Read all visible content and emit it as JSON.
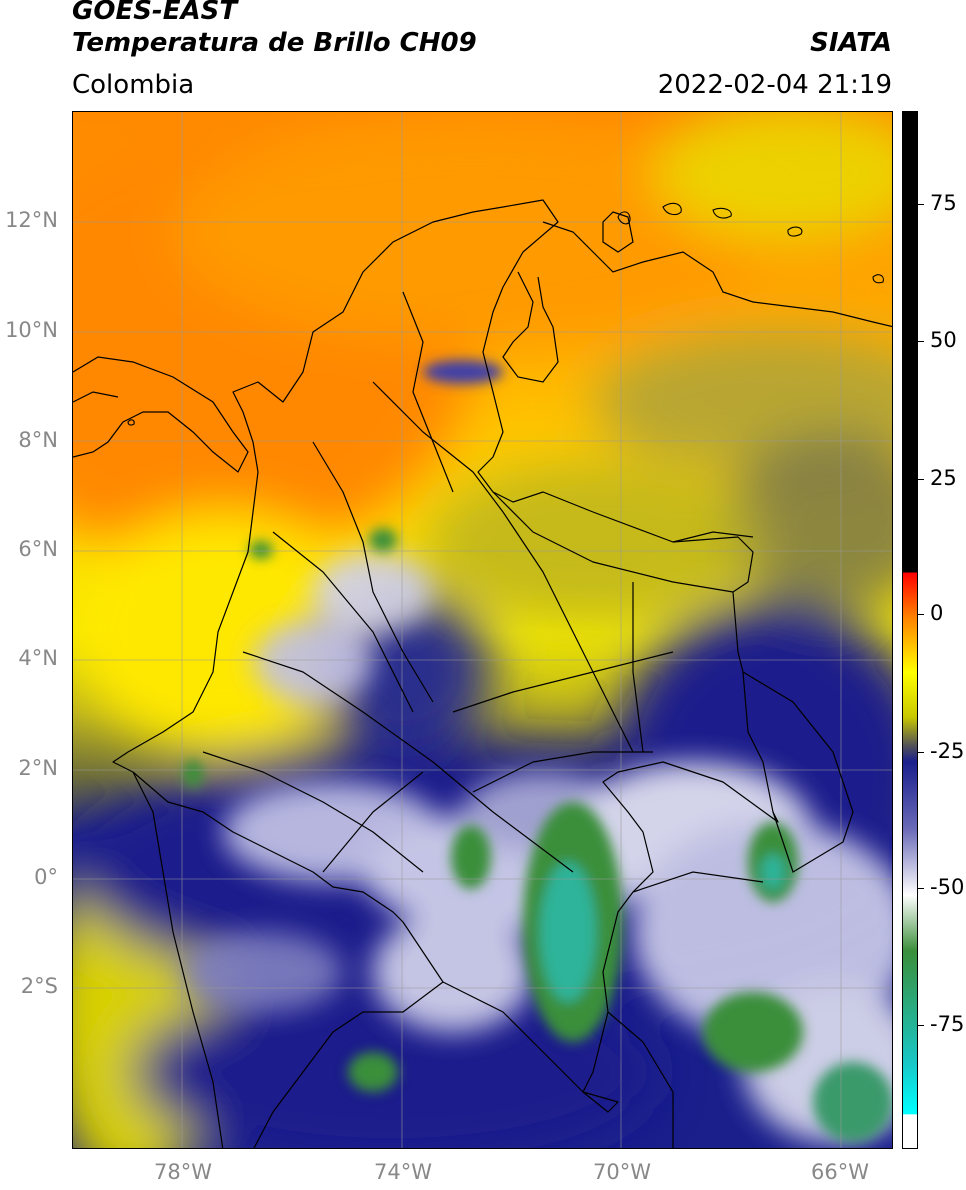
{
  "header": {
    "satellite": "GOES-EAST",
    "product": "Temperatura de Brillo CH09",
    "region": "Colombia",
    "source": "SIATA",
    "timestamp": "2022-02-04 21:19"
  },
  "map": {
    "lat_ticks": [
      "12°N",
      "10°N",
      "8°N",
      "6°N",
      "4°N",
      "2°N",
      "0°",
      "2°S"
    ],
    "lon_ticks": [
      "78°W",
      "74°W",
      "70°W",
      "66°W"
    ],
    "gridlines": true,
    "colors": {
      "orange": "#ff8c00",
      "yellow": "#fff000",
      "olive": "#8a8a30",
      "navy": "#1a1f8c",
      "white_cloud": "#f2f2f8",
      "green_core": "#3a8f3a",
      "cyan": "#18d8c8"
    }
  },
  "colorbar": {
    "ticks": [
      "75",
      "50",
      "25",
      "0",
      "-25",
      "-50",
      "-75"
    ],
    "gradient": [
      {
        "value": 90,
        "color": "#000000"
      },
      {
        "value": 8,
        "color": "#000000"
      },
      {
        "value": 7.9,
        "color": "#ff0000"
      },
      {
        "value": 0,
        "color": "#ff8000"
      },
      {
        "value": -10,
        "color": "#ffff00"
      },
      {
        "value": -18,
        "color": "#cccc00"
      },
      {
        "value": -23,
        "color": "#555555"
      },
      {
        "value": -26,
        "color": "#1a1f8c"
      },
      {
        "value": -38,
        "color": "#6a6ab8"
      },
      {
        "value": -50,
        "color": "#ffffff"
      },
      {
        "value": -60,
        "color": "#3a8f3a"
      },
      {
        "value": -80,
        "color": "#18c8c8"
      },
      {
        "value": -87,
        "color": "#00ffff"
      },
      {
        "value": -88,
        "color": "#ffffff"
      }
    ]
  }
}
